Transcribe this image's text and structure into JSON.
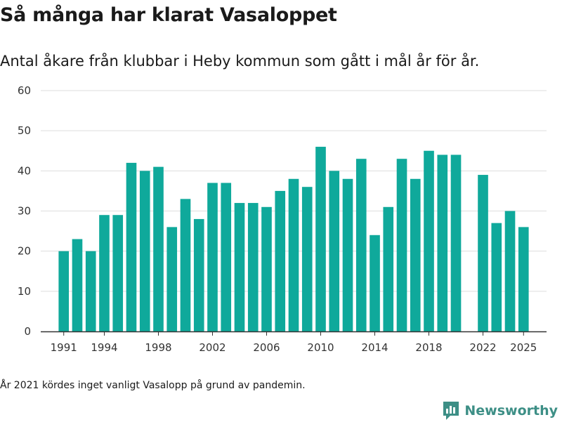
{
  "chart_data": {
    "type": "bar",
    "title": "Så många har klarat Vasaloppet",
    "subtitle": "Antal åkare från klubbar i Heby kommun som gått i mål år för år.",
    "x": [
      1991,
      1992,
      1993,
      1994,
      1995,
      1996,
      1997,
      1998,
      1999,
      2000,
      2001,
      2002,
      2003,
      2004,
      2005,
      2006,
      2007,
      2008,
      2009,
      2010,
      2011,
      2012,
      2013,
      2014,
      2015,
      2016,
      2017,
      2018,
      2019,
      2020,
      2022,
      2023,
      2024,
      2025
    ],
    "values": [
      20,
      23,
      20,
      29,
      29,
      42,
      40,
      41,
      26,
      33,
      28,
      37,
      37,
      32,
      32,
      31,
      35,
      38,
      36,
      46,
      40,
      38,
      43,
      24,
      31,
      43,
      38,
      45,
      44,
      44,
      39,
      27,
      30,
      26
    ],
    "x_ticks": [
      "1991",
      "1994",
      "1998",
      "2002",
      "2006",
      "2010",
      "2014",
      "2018",
      "2022",
      "2025"
    ],
    "y_ticks": [
      "0",
      "10",
      "20",
      "30",
      "40",
      "50",
      "60"
    ],
    "ylim": [
      0,
      60
    ],
    "xlim": [
      1989.3,
      2026.7
    ],
    "xlabel": "",
    "ylabel": "",
    "grid": true,
    "bar_color": "#0fa99b",
    "footnote": "År 2021 kördes inget vanligt Vasalopp på grund av pandemin."
  },
  "brand": {
    "name": "Newsworthy",
    "color": "#3d8f86",
    "icon": "newsworthy-logo-icon"
  }
}
